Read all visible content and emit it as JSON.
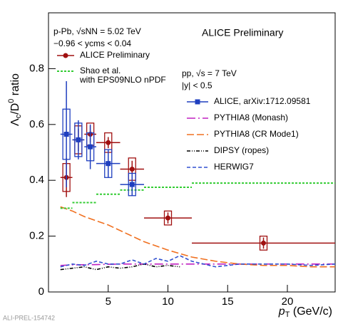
{
  "chart_data": {
    "type": "scatter",
    "y_label": {
      "base": "Λ",
      "sub": "c",
      "mid": "/D",
      "sup": "0",
      "tail": " ratio"
    },
    "x_label": {
      "base": "p",
      "sub": "T",
      "tail": " (GeV/c)"
    },
    "annotations": [
      "p-Pb, √sNN = 5.02 TeV",
      "−0.96 < ycms < 0.04",
      "ALICE Preliminary",
      "pp, √s = 7 TeV",
      "|y| < 0.5",
      "ALI-PREL-154742"
    ],
    "xlim": [
      0,
      24
    ],
    "ylim": [
      0,
      1
    ],
    "xticks": [
      5,
      10,
      15,
      20
    ],
    "yticks": [
      0,
      0.2,
      0.4,
      0.6,
      0.8
    ],
    "points": [
      {
        "name": "ALICE Preliminary",
        "color": "#a01010",
        "x": [
          1.5,
          2.5,
          3.5,
          5,
          7,
          10,
          18
        ],
        "xerr": [
          0.5,
          0.5,
          0.5,
          1,
          1,
          2,
          6
        ],
        "values": [
          0.41,
          0.545,
          0.565,
          0.535,
          0.44,
          0.265,
          0.175
        ],
        "err": [
          0.07,
          0.04,
          0.03,
          0.02,
          0.03,
          0.02,
          0.02
        ],
        "syst": [
          0.05,
          0.05,
          0.04,
          0.035,
          0.04,
          0.025,
          0.025
        ]
      },
      {
        "name": "ALICE, arXiv:1712.09581",
        "color": "#1f3fbf",
        "x": [
          1.5,
          2.5,
          3.5,
          5,
          7
        ],
        "xerr": [
          0.5,
          0.5,
          0.5,
          1,
          1
        ],
        "values": [
          0.565,
          0.545,
          0.52,
          0.46,
          0.385
        ],
        "err": [
          0.19,
          0.07,
          0.08,
          0.05,
          0.04
        ],
        "syst": [
          0.09,
          0.06,
          0.05,
          0.05,
          0.04
        ]
      }
    ],
    "step": {
      "name": [
        "Shao et al.",
        "with EPS09NLO nPDF"
      ],
      "color": "#33cc33",
      "bins": [
        1,
        2,
        4,
        6,
        8,
        12,
        24
      ],
      "values": [
        0.3,
        0.32,
        0.35,
        0.365,
        0.375,
        0.39
      ]
    },
    "series": [
      {
        "name": "PYTHIA8 (Monash)",
        "color": "#c020c0",
        "dash": "12 4 2 4",
        "x": [
          1,
          2,
          4,
          6,
          8,
          10,
          12,
          16,
          20,
          24
        ],
        "values": [
          0.095,
          0.097,
          0.098,
          0.1,
          0.1,
          0.1,
          0.1,
          0.1,
          0.1,
          0.1
        ]
      },
      {
        "name": "PYTHIA8 (CR Mode1)",
        "color": "#f07020",
        "dash": "10 4",
        "x": [
          1,
          2,
          3,
          4,
          5,
          6,
          7,
          8,
          10,
          12,
          14,
          16,
          18,
          20,
          22,
          24
        ],
        "values": [
          0.305,
          0.29,
          0.27,
          0.255,
          0.24,
          0.22,
          0.2,
          0.18,
          0.15,
          0.125,
          0.11,
          0.1,
          0.095,
          0.095,
          0.09,
          0.09
        ]
      },
      {
        "name": "DIPSY (ropes)",
        "color": "#000000",
        "dash": "5 2 1 2 1 2",
        "x": [
          1,
          2,
          3,
          4,
          5,
          6,
          7,
          8,
          9,
          10,
          11
        ],
        "values": [
          0.08,
          0.085,
          0.09,
          0.08,
          0.09,
          0.085,
          0.09,
          0.1,
          0.09,
          0.095,
          0.09
        ]
      },
      {
        "name": "HERWIG7",
        "color": "#3050d0",
        "dash": "5 3",
        "x": [
          1,
          2,
          3,
          4,
          5,
          6,
          7,
          8,
          9,
          10,
          11,
          12,
          14,
          16,
          18,
          20,
          22,
          24
        ],
        "values": [
          0.09,
          0.1,
          0.095,
          0.11,
          0.1,
          0.1,
          0.115,
          0.1,
          0.12,
          0.11,
          0.13,
          0.11,
          0.09,
          0.1,
          0.1,
          0.1,
          0.095,
          0.1
        ]
      }
    ]
  }
}
